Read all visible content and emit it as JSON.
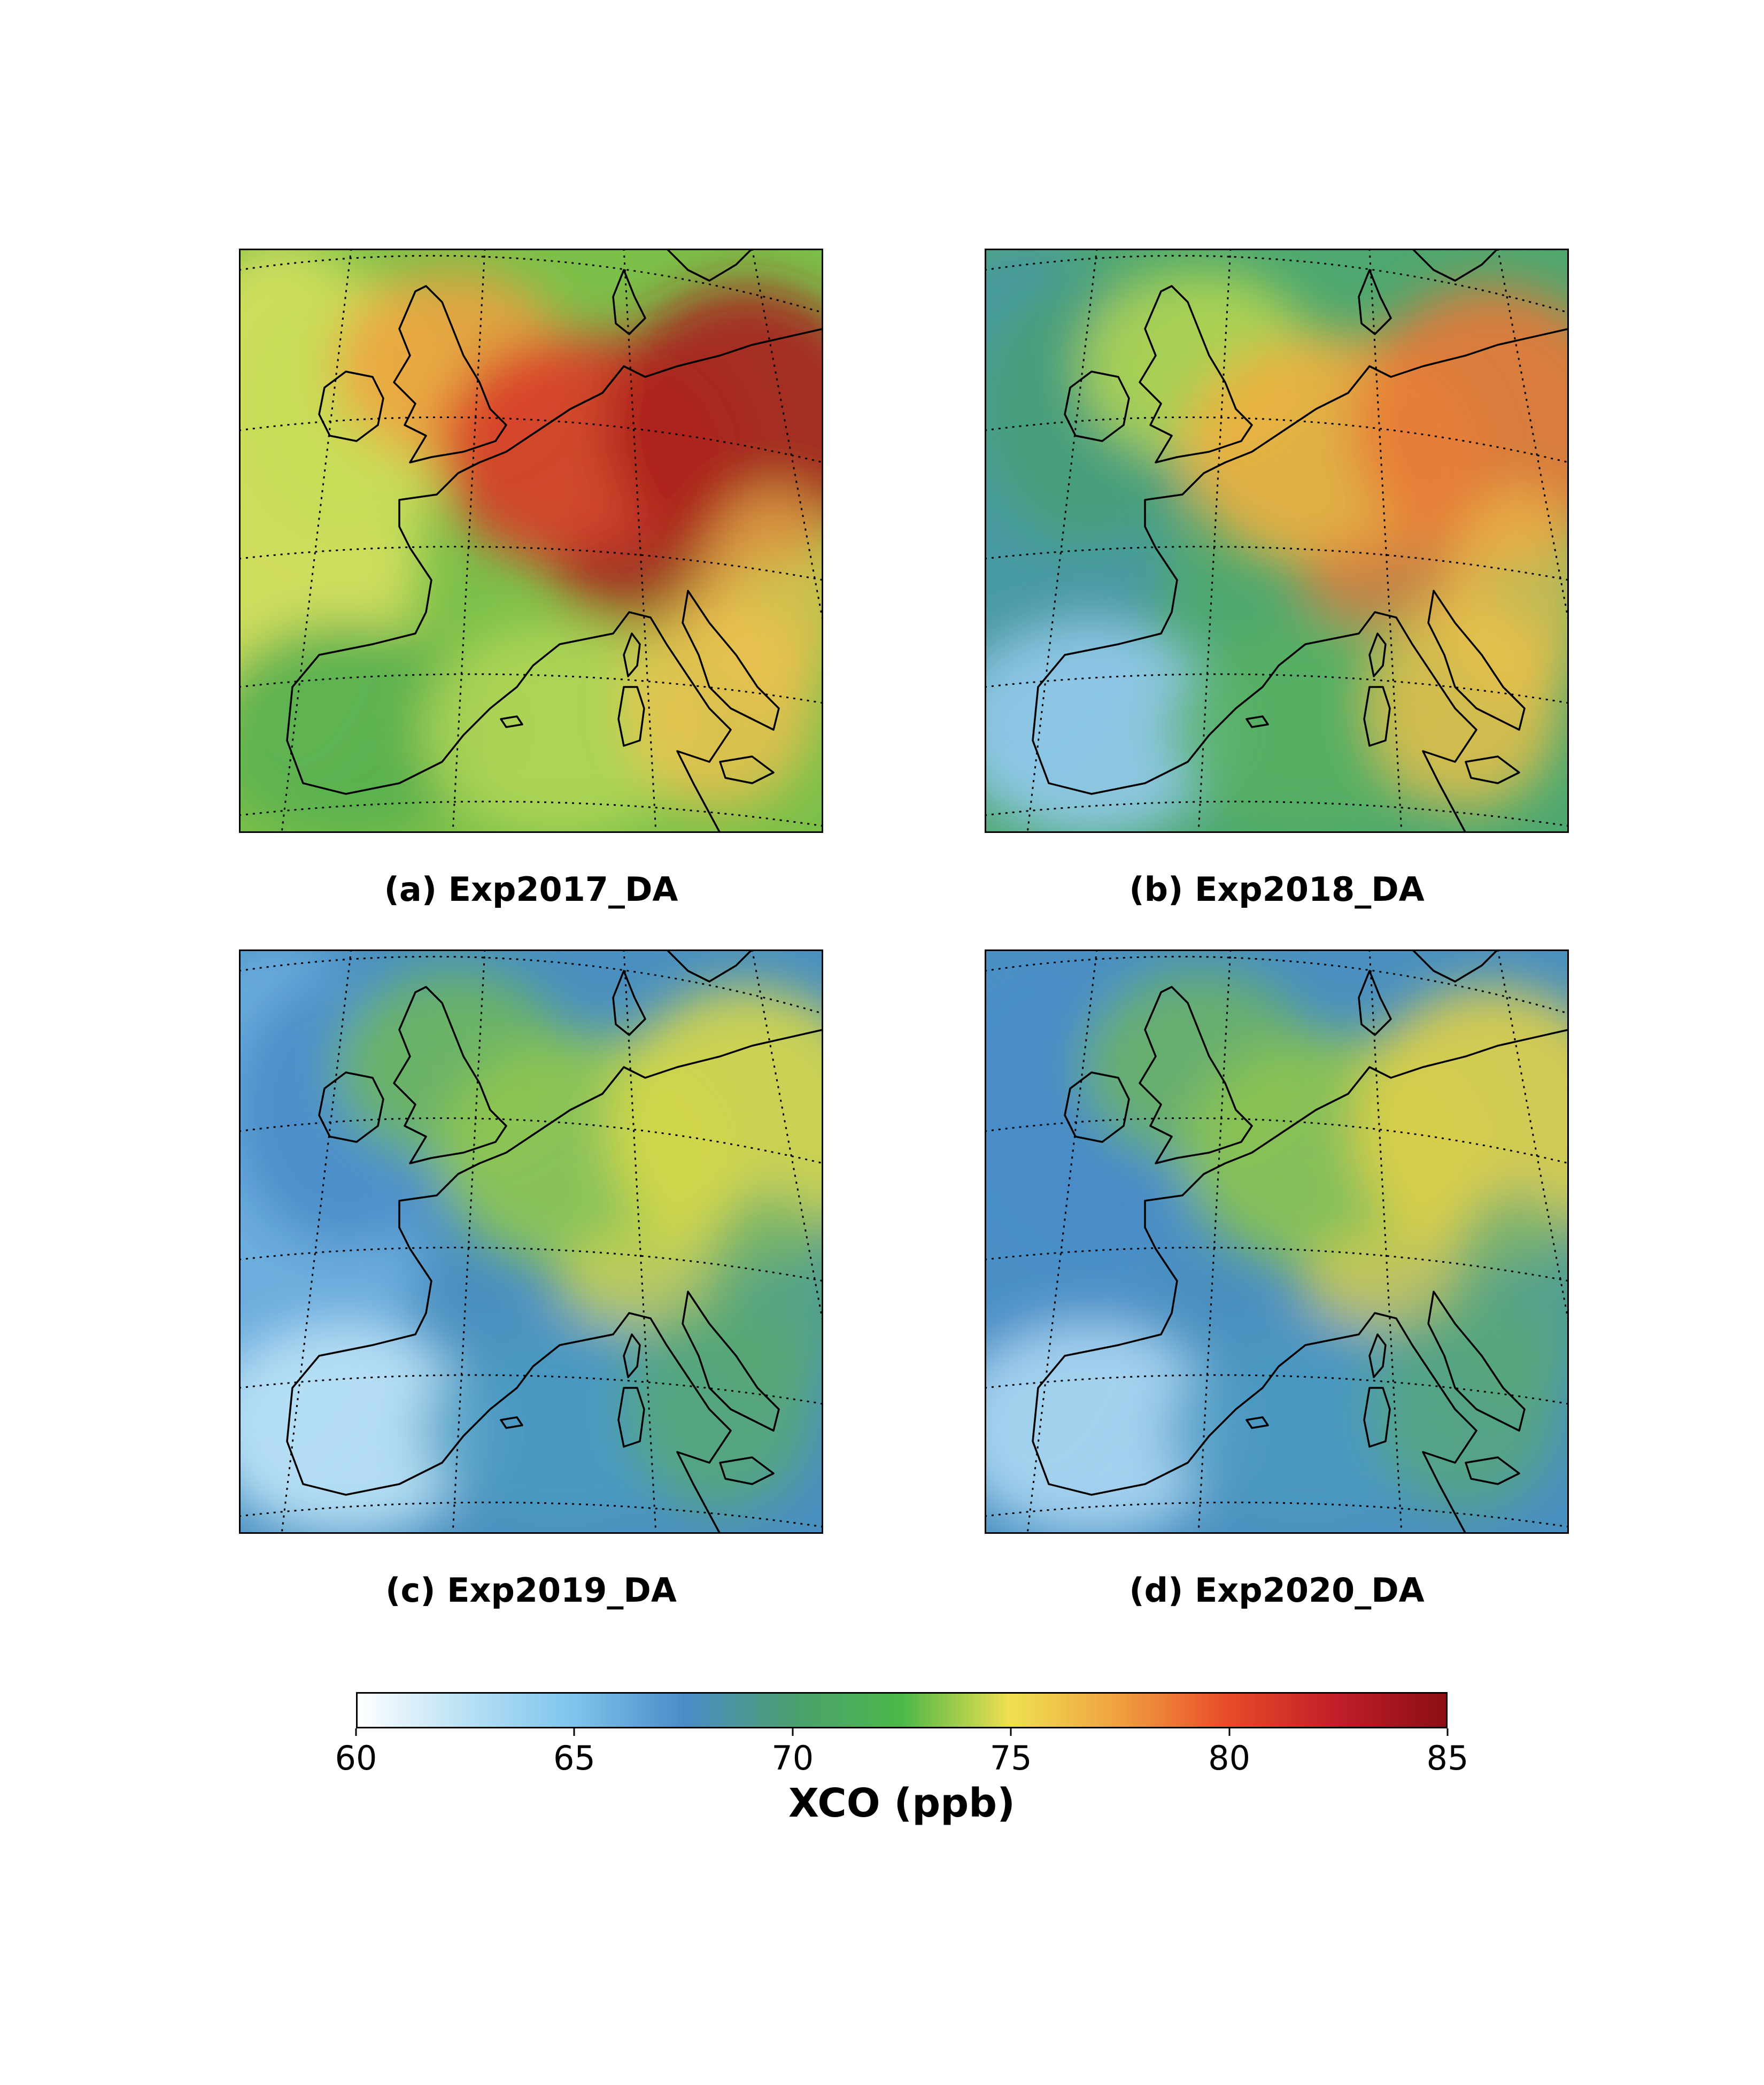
{
  "panels": [
    {
      "caption": "(a) Exp2017_DA",
      "palette": {
        "base": "#7cc04a",
        "west": "#c8dc58",
        "north": "#f0a040",
        "central": "#d83a2a",
        "east": "#a81e1e",
        "iberia": "#58b050",
        "med": "#b8d858",
        "italy": "#f0c050",
        "ocean": "#d8e060"
      }
    },
    {
      "caption": "(b) Exp2018_DA",
      "palette": {
        "base": "#4ea870",
        "west": "#48a078",
        "north": "#b8d850",
        "central": "#f0b040",
        "east": "#e87838",
        "iberia": "#90c8e8",
        "med": "#58b060",
        "italy": "#f0c048",
        "ocean": "#4898a8"
      }
    },
    {
      "caption": "(c) Exp2019_DA",
      "palette": {
        "base": "#4a90c0",
        "west": "#4a8cc8",
        "north": "#70b858",
        "central": "#90c850",
        "east": "#d8d848",
        "iberia": "#b8e0f4",
        "med": "#4a9ac0",
        "italy": "#58aa70",
        "ocean": "#70b0e0"
      }
    },
    {
      "caption": "(d) Exp2020_DA",
      "palette": {
        "base": "#4a90c0",
        "west": "#4a8cc8",
        "north": "#6cb460",
        "central": "#8cc450",
        "east": "#e0d048",
        "iberia": "#a8d4f0",
        "med": "#4a98c0",
        "italy": "#58a878",
        "ocean": "#4a90c8"
      }
    }
  ],
  "colorbar": {
    "label": "XCO (ppb)",
    "ticks": [
      "60",
      "65",
      "70",
      "75",
      "80",
      "85"
    ],
    "stops": [
      "#ffffff",
      "#b8e0f4",
      "#7cc4ec",
      "#4a8cc8",
      "#4aa070",
      "#4cb848",
      "#f0e050",
      "#f0a040",
      "#e84a28",
      "#c01e28",
      "#8c0e14"
    ]
  }
}
